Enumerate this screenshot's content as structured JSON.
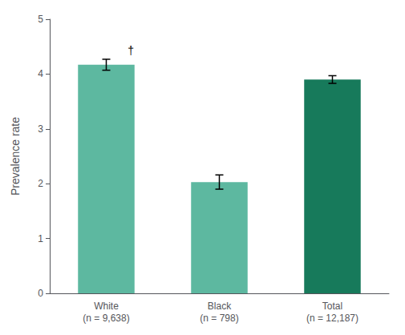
{
  "chart_data": {
    "type": "bar",
    "categories": [
      "White\n(n = 9,638)",
      "Black\n(n = 798)",
      "Total\n(n = 12,187)"
    ],
    "values": [
      4.17,
      2.03,
      3.9
    ],
    "errors": [
      0.1,
      0.13,
      0.07
    ],
    "colors": [
      "#5db8a0",
      "#5db8a0",
      "#177a5b"
    ],
    "ylabel": "Prevalence rate",
    "ylim": [
      0,
      5
    ],
    "yticks": [
      0,
      1,
      2,
      3,
      4,
      5
    ],
    "grid": false,
    "annotations": [
      {
        "text": "†",
        "category": "White\n(n = 9,638)"
      }
    ]
  }
}
